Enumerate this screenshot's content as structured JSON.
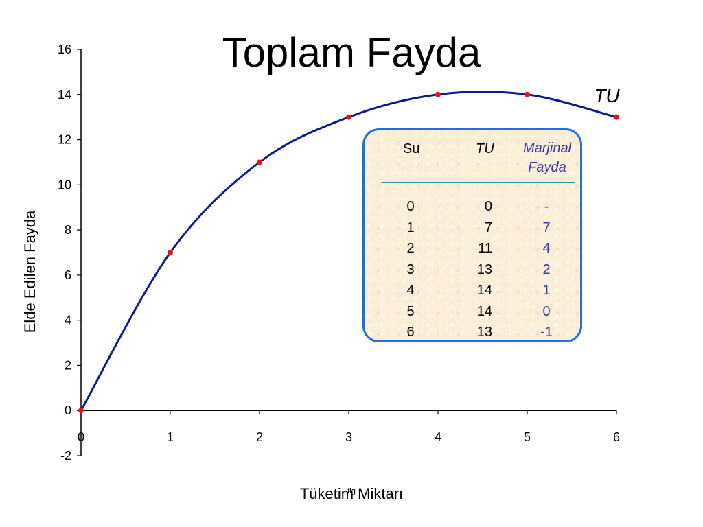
{
  "chart_data": {
    "type": "line",
    "title": "Toplam Fayda",
    "xlabel": "Tüketim Miktarı",
    "ylabel": "Elde Edilen Fayda",
    "xlim": [
      0,
      6
    ],
    "ylim": [
      -2,
      16
    ],
    "x_ticks": [
      "0",
      "1",
      "2",
      "3",
      "4",
      "5",
      "6"
    ],
    "y_ticks": [
      "-2",
      "0",
      "2",
      "4",
      "6",
      "8",
      "10",
      "12",
      "14",
      "16"
    ],
    "grid": false,
    "series": [
      {
        "name": "TU",
        "color": "#0a1a8c",
        "marker_color": "#ee1111",
        "x": [
          0,
          1,
          2,
          3,
          4,
          5,
          6
        ],
        "y": [
          0,
          7,
          11,
          13,
          14,
          14,
          13
        ]
      }
    ],
    "footnote": "fig"
  },
  "table": {
    "headers": {
      "su": "Su",
      "tu": "TU",
      "mu_line1": "Marjinal",
      "mu_line2": "Fayda"
    },
    "rows": [
      {
        "su": "0",
        "tu": "0",
        "mu": "-"
      },
      {
        "su": "1",
        "tu": "7",
        "mu": "7"
      },
      {
        "su": "2",
        "tu": "11",
        "mu": "4"
      },
      {
        "su": "3",
        "tu": "13",
        "mu": "2"
      },
      {
        "su": "4",
        "tu": "14",
        "mu": "1"
      },
      {
        "su": "5",
        "tu": "14",
        "mu": "0"
      },
      {
        "su": "6",
        "tu": "13",
        "mu": "-1"
      }
    ]
  }
}
